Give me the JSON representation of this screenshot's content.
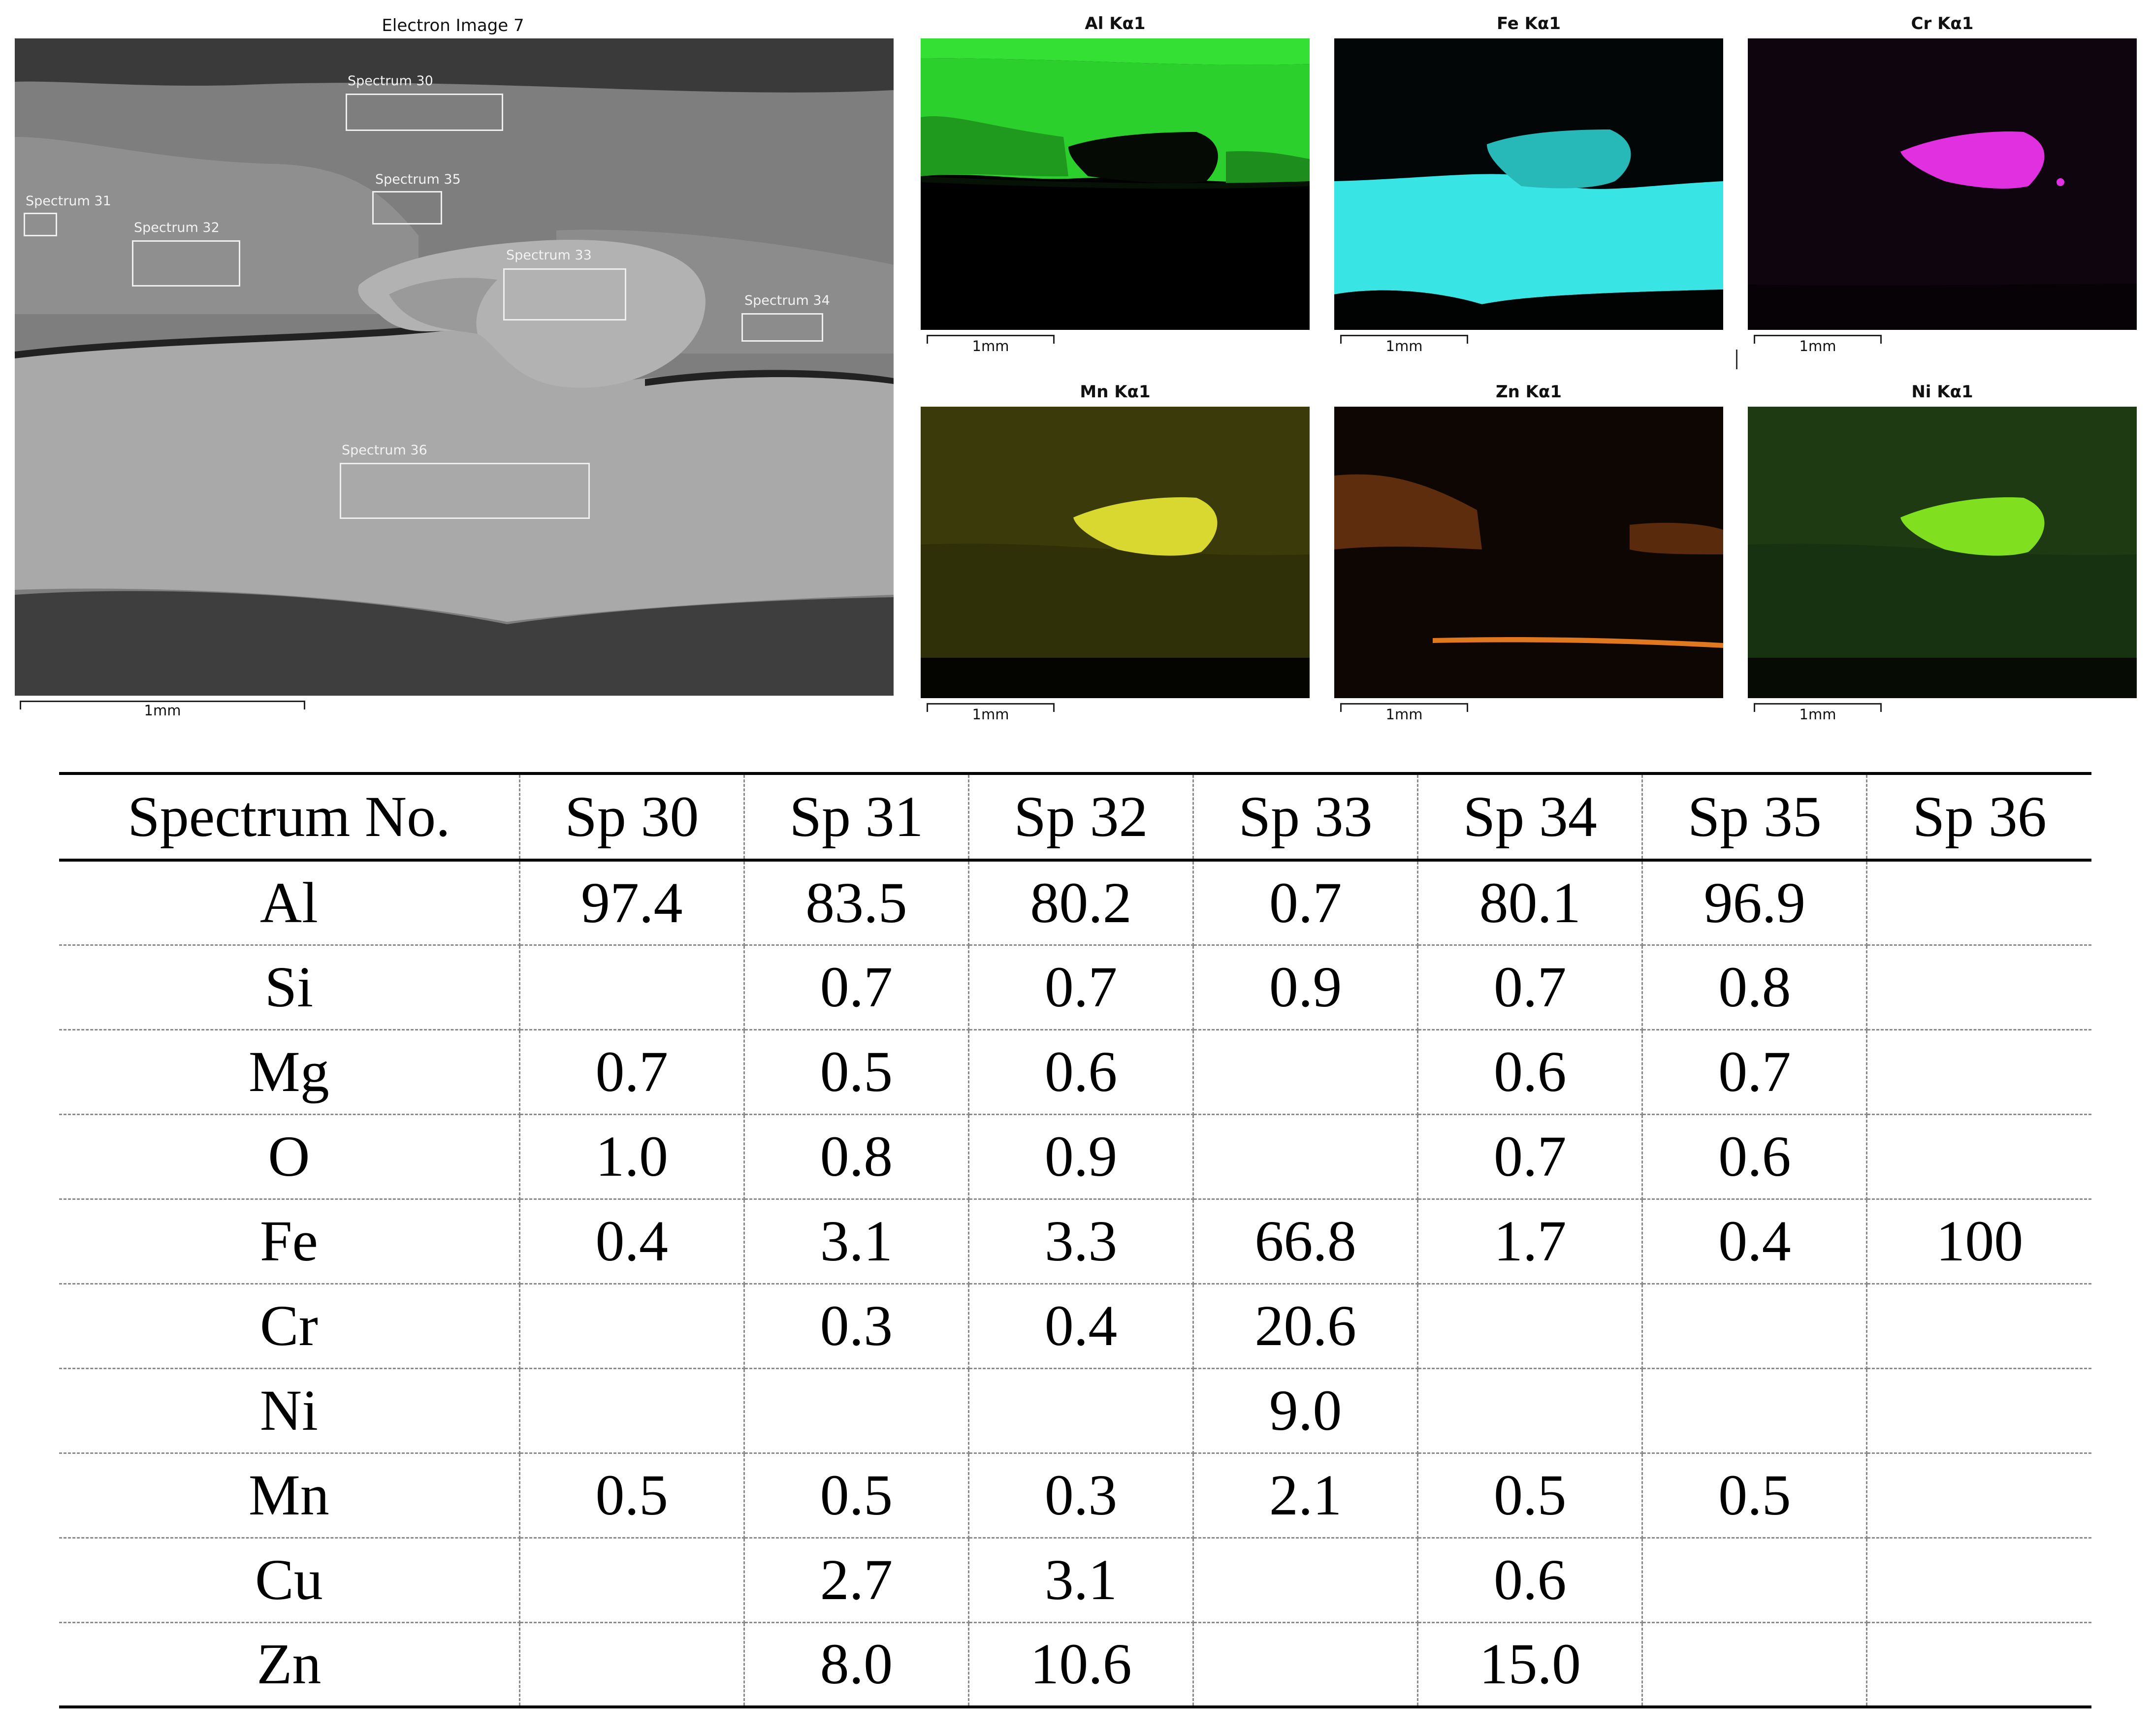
{
  "electron_image": {
    "title": "Electron Image 7",
    "scale_label": "1mm",
    "spectra": [
      {
        "label": "Spectrum 30"
      },
      {
        "label": "Spectrum 31"
      },
      {
        "label": "Spectrum 35"
      },
      {
        "label": "Spectrum 32"
      },
      {
        "label": "Spectrum 33"
      },
      {
        "label": "Spectrum 34"
      },
      {
        "label": "Spectrum 36"
      }
    ]
  },
  "maps": [
    {
      "title": "Al Kα1",
      "scale_label": "1mm",
      "color": "#2fe02f"
    },
    {
      "title": "Fe Kα1",
      "scale_label": "1mm",
      "color": "#35e0e0"
    },
    {
      "title": "Cr Kα1",
      "scale_label": "1mm",
      "color": "#e030e0"
    },
    {
      "title": "Mn Kα1",
      "scale_label": "1mm",
      "color": "#d8d830"
    },
    {
      "title": "Zn Kα1",
      "scale_label": "1mm",
      "color": "#e07820"
    },
    {
      "title": "Ni Kα1",
      "scale_label": "1mm",
      "color": "#80e020"
    }
  ],
  "table": {
    "headers": [
      "Spectrum No.",
      "Sp 30",
      "Sp 31",
      "Sp 32",
      "Sp 33",
      "Sp 34",
      "Sp 35",
      "Sp 36"
    ],
    "rows": [
      [
        "Al",
        "97.4",
        "83.5",
        "80.2",
        "0.7",
        "80.1",
        "96.9",
        ""
      ],
      [
        "Si",
        "",
        "0.7",
        "0.7",
        "0.9",
        "0.7",
        "0.8",
        ""
      ],
      [
        "Mg",
        "0.7",
        "0.5",
        "0.6",
        "",
        "0.6",
        "0.7",
        ""
      ],
      [
        "O",
        "1.0",
        "0.8",
        "0.9",
        "",
        "0.7",
        "0.6",
        ""
      ],
      [
        "Fe",
        "0.4",
        "3.1",
        "3.3",
        "66.8",
        "1.7",
        "0.4",
        "100"
      ],
      [
        "Cr",
        "",
        "0.3",
        "0.4",
        "20.6",
        "",
        "",
        ""
      ],
      [
        "Ni",
        "",
        "",
        "",
        "9.0",
        "",
        "",
        ""
      ],
      [
        "Mn",
        "0.5",
        "0.5",
        "0.3",
        "2.1",
        "0.5",
        "0.5",
        ""
      ],
      [
        "Cu",
        "",
        "2.7",
        "3.1",
        "",
        "0.6",
        "",
        ""
      ],
      [
        "Zn",
        "",
        "8.0",
        "10.6",
        "",
        "15.0",
        "",
        ""
      ]
    ]
  }
}
